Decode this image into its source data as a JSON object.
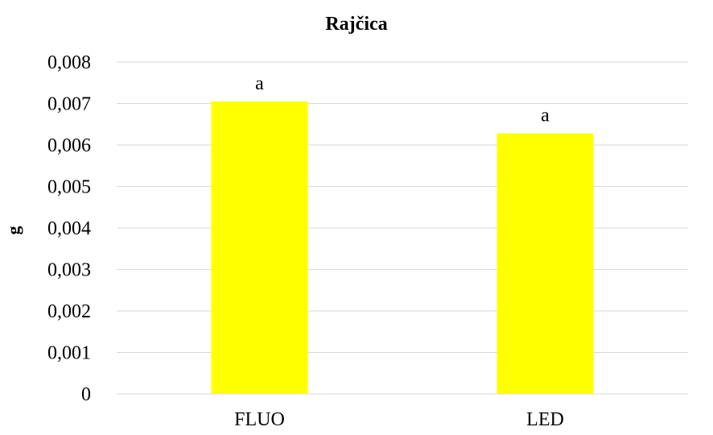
{
  "chart_data": {
    "type": "bar",
    "title": "Rajčica",
    "ylabel": "g",
    "xlabel": "",
    "categories": [
      "FLUO",
      "LED"
    ],
    "values": [
      0.00705,
      0.00628
    ],
    "data_labels": [
      "a",
      "a"
    ],
    "ylim": [
      0,
      0.008
    ],
    "yticks": [
      0,
      0.001,
      0.002,
      0.003,
      0.004,
      0.005,
      0.006,
      0.007,
      0.008
    ],
    "ytick_labels": [
      "0",
      "0,001",
      "0,002",
      "0,003",
      "0,004",
      "0,005",
      "0,006",
      "0,007",
      "0,008"
    ],
    "grid": true,
    "legend": "none",
    "bar_color": "#ffff00",
    "grid_color": "#d9d9d9"
  }
}
